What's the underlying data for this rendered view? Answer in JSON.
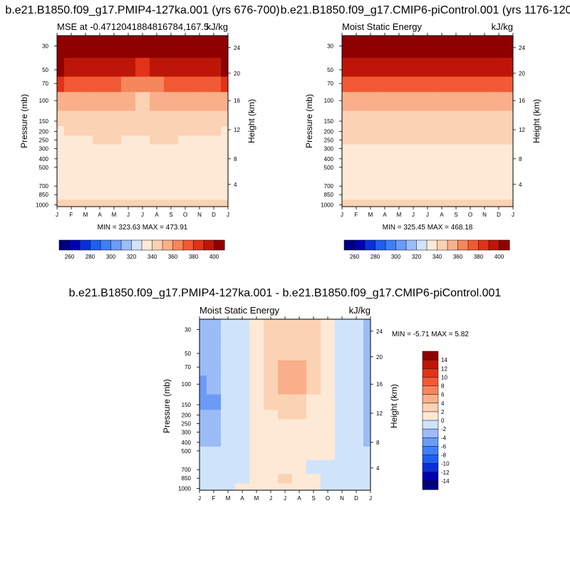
{
  "colors": {
    "palette": [
      "#00007f",
      "#0000b0",
      "#0a2fd9",
      "#1f5ef0",
      "#3f7ef5",
      "#6b9bf5",
      "#9bbcf6",
      "#cfe3fb",
      "#fde9d6",
      "#fcd2b4",
      "#f9b08a",
      "#f6865b",
      "#f15a34",
      "#e23219",
      "#bd1608",
      "#8f0000"
    ]
  },
  "panels": [
    {
      "id": "top-left",
      "title": "b.e21.B1850.f09_g17.PMIP4-127ka.001 (yrs 676-700)",
      "left_label": "MSE at -0.4712041884816784,167.5",
      "right_label": "kJ/kg",
      "stats": "MIN = 323.63 MAX = 473.91",
      "months": [
        "J",
        "F",
        "M",
        "A",
        "M",
        "J",
        "J",
        "A",
        "S",
        "O",
        "N",
        "D",
        "J"
      ],
      "pressure_ticks": [
        "30",
        "50",
        "70",
        "100",
        "150",
        "200",
        "250",
        "300",
        "400",
        "500",
        "700",
        "850",
        "1000"
      ],
      "height_ticks": [
        "24",
        "20",
        "16",
        "12",
        "8",
        "4"
      ],
      "ylabel": "Pressure (mb)",
      "ylabel_right": "Height (km)",
      "colorbar_labels": [
        "260",
        "280",
        "300",
        "320",
        "340",
        "360",
        "380",
        "400"
      ]
    },
    {
      "id": "top-right",
      "title": "b.e21.B1850.f09_g17.CMIP6-piControl.001 (yrs 1176-120",
      "left_label": "Moist Static Energy",
      "right_label": "kJ/kg",
      "stats": "MIN = 325.45 MAX = 468.18",
      "months": [
        "J",
        "F",
        "M",
        "A",
        "M",
        "J",
        "J",
        "A",
        "S",
        "O",
        "N",
        "D",
        "J"
      ],
      "pressure_ticks": [
        "30",
        "50",
        "70",
        "100",
        "150",
        "200",
        "250",
        "300",
        "400",
        "500",
        "700",
        "850",
        "1000"
      ],
      "height_ticks": [
        "24",
        "20",
        "16",
        "12",
        "8",
        "4"
      ],
      "ylabel": "Pressure (mb)",
      "ylabel_right": "Height (km)",
      "colorbar_labels": [
        "260",
        "280",
        "300",
        "320",
        "340",
        "360",
        "380",
        "400"
      ]
    },
    {
      "id": "bottom",
      "title": "b.e21.B1850.f09_g17.PMIP4-127ka.001 - b.e21.B1850.f09_g17.CMIP6-piControl.001",
      "left_label": "Moist Static Energy",
      "right_label": "kJ/kg",
      "stats": "MIN =  -5.71 MAX =   5.82",
      "months": [
        "J",
        "F",
        "M",
        "A",
        "M",
        "J",
        "J",
        "A",
        "S",
        "O",
        "N",
        "D",
        "J"
      ],
      "pressure_ticks": [
        "30",
        "50",
        "70",
        "100",
        "150",
        "200",
        "250",
        "300",
        "400",
        "500",
        "700",
        "850",
        "1000"
      ],
      "height_ticks": [
        "24",
        "20",
        "16",
        "12",
        "8",
        "4"
      ],
      "ylabel": "Pressure (mb)",
      "ylabel_right": "Height (km)",
      "colorbar_labels": [
        "14",
        "12",
        "10",
        "8",
        "6",
        "4",
        "2",
        "0",
        "-2",
        "-4",
        "-6",
        "-8",
        "-10",
        "-12",
        "-14"
      ]
    }
  ],
  "chart_data": [
    {
      "type": "heatmap",
      "title": "b.e21.B1850.f09_g17.PMIP4-127ka.001 (yrs 676-700)",
      "subtitle": "MSE at -0.4712041884816784,167.5",
      "units": "kJ/kg",
      "xlabel": "",
      "ylabel": "Pressure (mb)",
      "ylabel_right": "Height (km)",
      "x": [
        "J",
        "F",
        "M",
        "A",
        "M",
        "J",
        "J",
        "A",
        "S",
        "O",
        "N",
        "D",
        "J"
      ],
      "y_levels_mb": [
        30,
        50,
        70,
        100,
        150,
        200,
        250,
        300,
        400,
        500,
        700,
        850,
        1000
      ],
      "contour_levels": [
        255,
        260,
        265,
        270,
        275,
        280,
        285,
        290,
        295,
        300,
        305,
        310,
        315,
        320,
        325,
        330,
        335,
        340,
        345,
        350,
        355,
        360,
        365,
        370,
        375,
        380,
        385,
        390,
        395,
        400,
        405
      ],
      "min": 323.63,
      "max": 473.91,
      "values": [
        [
          450,
          450,
          450,
          450,
          450,
          450,
          450,
          450,
          450,
          450,
          450,
          450,
          450
        ],
        [
          400,
          398,
          396,
          394,
          392,
          390,
          389,
          390,
          392,
          394,
          396,
          398,
          400
        ],
        [
          381,
          379,
          377,
          374,
          371,
          368,
          366,
          368,
          371,
          374,
          377,
          379,
          381
        ],
        [
          354,
          354,
          353,
          352,
          351,
          350,
          349,
          350,
          351,
          352,
          353,
          354,
          354
        ],
        [
          348,
          348,
          347,
          346,
          345,
          343,
          342,
          343,
          344,
          345,
          346,
          347,
          348
        ],
        [
          339,
          341,
          341,
          342,
          342,
          341,
          341,
          342,
          342,
          341,
          341,
          340,
          339
        ],
        [
          337,
          338,
          339,
          340,
          340,
          339,
          339,
          340,
          340,
          339,
          338,
          337,
          337
        ],
        [
          337,
          338,
          338,
          339,
          339,
          338,
          338,
          339,
          339,
          338,
          338,
          337,
          337
        ],
        [
          337,
          338,
          338,
          339,
          339,
          338,
          338,
          339,
          339,
          338,
          338,
          337,
          337
        ],
        [
          336,
          337,
          337,
          338,
          338,
          337,
          337,
          338,
          338,
          337,
          337,
          336,
          336
        ],
        [
          331,
          332,
          337,
          338,
          338,
          335,
          332,
          331,
          330,
          331,
          332,
          336,
          331
        ],
        [
          332,
          331,
          334,
          335,
          335,
          334,
          333,
          333,
          332,
          333,
          334,
          334,
          332
        ],
        [
          341,
          340,
          342,
          343,
          344,
          343,
          342,
          341,
          341,
          342,
          342,
          341,
          341
        ]
      ]
    },
    {
      "type": "heatmap",
      "title": "b.e21.B1850.f09_g17.CMIP6-piControl.001 (yrs 1176-120",
      "subtitle": "Moist Static Energy",
      "units": "kJ/kg",
      "xlabel": "",
      "ylabel": "Pressure (mb)",
      "ylabel_right": "Height (km)",
      "x": [
        "J",
        "F",
        "M",
        "A",
        "M",
        "J",
        "J",
        "A",
        "S",
        "O",
        "N",
        "D",
        "J"
      ],
      "y_levels_mb": [
        30,
        50,
        70,
        100,
        150,
        200,
        250,
        300,
        400,
        500,
        700,
        850,
        1000
      ],
      "contour_levels": [
        255,
        260,
        265,
        270,
        275,
        280,
        285,
        290,
        295,
        300,
        305,
        310,
        315,
        320,
        325,
        330,
        335,
        340,
        345,
        350,
        355,
        360,
        365,
        370,
        375,
        380,
        385,
        390,
        395,
        400,
        405
      ],
      "min": 325.45,
      "max": 468.18,
      "values": [
        [
          450,
          450,
          450,
          450,
          450,
          450,
          450,
          450,
          450,
          450,
          450,
          450,
          450
        ],
        [
          398,
          398,
          398,
          398,
          398,
          398,
          398,
          398,
          398,
          398,
          398,
          398,
          398
        ],
        [
          377,
          377,
          377,
          377,
          377,
          377,
          377,
          377,
          377,
          377,
          377,
          377,
          377
        ],
        [
          354,
          354,
          354,
          354,
          354,
          354,
          354,
          354,
          354,
          354,
          354,
          354,
          354
        ],
        [
          346,
          346,
          346,
          346,
          346,
          346,
          346,
          346,
          346,
          346,
          346,
          346,
          346
        ],
        [
          341,
          341,
          341,
          341,
          341,
          341,
          341,
          341,
          341,
          341,
          341,
          341,
          341
        ],
        [
          340,
          340,
          340,
          340,
          340,
          340,
          340,
          340,
          340,
          340,
          340,
          340,
          340
        ],
        [
          338,
          338,
          338,
          338,
          338,
          338,
          338,
          338,
          338,
          338,
          338,
          338,
          338
        ],
        [
          337,
          337,
          337,
          337,
          337,
          337,
          337,
          337,
          337,
          337,
          337,
          337,
          337
        ],
        [
          336,
          336,
          336,
          336,
          336,
          336,
          336,
          336,
          336,
          336,
          336,
          336,
          336
        ],
        [
          336,
          336,
          336,
          336,
          336,
          334,
          332,
          331,
          331,
          332,
          334,
          336,
          336
        ],
        [
          335,
          335,
          335,
          335,
          335,
          334,
          333,
          333,
          333,
          334,
          335,
          335,
          335
        ],
        [
          341,
          341,
          341,
          341,
          341,
          341,
          341,
          341,
          341,
          341,
          341,
          341,
          341
        ]
      ]
    },
    {
      "type": "heatmap",
      "title": "b.e21.B1850.f09_g17.PMIP4-127ka.001 - b.e21.B1850.f09_g17.CMIP6-piControl.001",
      "subtitle": "Moist Static Energy",
      "units": "kJ/kg",
      "xlabel": "",
      "ylabel": "Pressure (mb)",
      "ylabel_right": "Height (km)",
      "x": [
        "J",
        "F",
        "M",
        "A",
        "M",
        "J",
        "J",
        "A",
        "S",
        "O",
        "N",
        "D",
        "J"
      ],
      "y_levels_mb": [
        30,
        50,
        70,
        100,
        150,
        200,
        250,
        300,
        400,
        500,
        700,
        850,
        1000
      ],
      "contour_levels": [
        -14,
        -12,
        -10,
        -8,
        -6,
        -4,
        -2,
        0,
        2,
        4,
        6,
        8,
        10,
        12,
        14
      ],
      "min": -5.71,
      "max": 5.82,
      "values": [
        [
          -3,
          -3,
          -2,
          -1,
          0.5,
          2,
          3,
          3.5,
          2,
          0.5,
          -1,
          -2,
          -3
        ],
        [
          -3,
          -3,
          -2,
          -1,
          0.5,
          2.5,
          3.5,
          3.5,
          2,
          0.5,
          -1,
          -2,
          -3
        ],
        [
          -3,
          -3.5,
          -2,
          -1,
          0.5,
          2.5,
          4.5,
          4,
          2,
          0.5,
          -1,
          -2,
          -3
        ],
        [
          -4.5,
          -4,
          -2,
          -1,
          0.5,
          2.5,
          4.5,
          4,
          2,
          0.5,
          -1,
          -2,
          -3
        ],
        [
          -4.5,
          -4.5,
          -2,
          -1,
          0.5,
          2,
          3.5,
          3,
          1.5,
          0.5,
          -1,
          -2,
          -3
        ],
        [
          -3,
          -3,
          -2,
          -1,
          0.5,
          1.5,
          2.5,
          2,
          1,
          0.5,
          -1,
          -2,
          -3
        ],
        [
          -2.5,
          -2.5,
          -2,
          -1,
          0.5,
          1,
          1.5,
          1,
          0.5,
          0.5,
          -1,
          -2,
          -2.5
        ],
        [
          -2.5,
          -2.5,
          -2,
          -1,
          0.5,
          1,
          1,
          1,
          0.5,
          0.5,
          -1,
          -2,
          -2.5
        ],
        [
          -2.5,
          -2.5,
          -2,
          -1,
          0.5,
          1,
          1,
          1,
          0.5,
          0.5,
          -1,
          -2,
          -2.5
        ],
        [
          -2,
          -2,
          -2,
          -1,
          0.5,
          1,
          1,
          1,
          0.5,
          0.5,
          -1,
          -2,
          -2
        ],
        [
          -2,
          -2,
          -1,
          -0.5,
          0.5,
          1,
          0.5,
          0.5,
          -0.5,
          -1,
          -1.5,
          -2,
          -2
        ],
        [
          -2,
          -2,
          -1,
          -0.5,
          0.5,
          1.5,
          2,
          1.5,
          0.5,
          -1,
          -2,
          -2,
          -2
        ],
        [
          -1,
          -1,
          -0.5,
          0,
          0.5,
          1,
          1,
          1,
          0.5,
          -0.5,
          -1,
          -1,
          -1
        ]
      ]
    }
  ]
}
